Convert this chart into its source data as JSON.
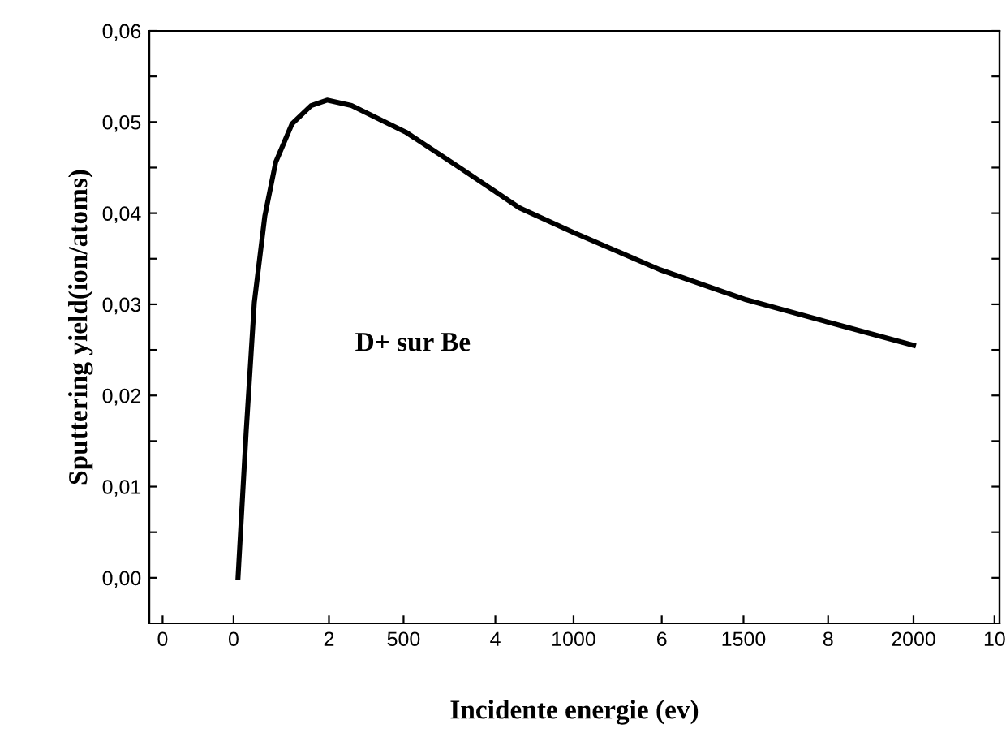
{
  "chart_data": {
    "type": "line",
    "xlabel": "Incidente energie (ev)",
    "ylabel": "Sputtering yield(ion/atoms)",
    "x": [
      13,
      37,
      61,
      92,
      124,
      172,
      228,
      275,
      347,
      506,
      665,
      745,
      840,
      999,
      1254,
      1508,
      1763,
      2000
    ],
    "series": [
      {
        "color": "#000000",
        "values": [
          0.0,
          0.016,
          0.0302,
          0.0397,
          0.0456,
          0.0498,
          0.0518,
          0.0524,
          0.0518,
          0.0489,
          0.045,
          0.043,
          0.0406,
          0.0379,
          0.0338,
          0.0305,
          0.0279,
          0.0255
        ]
      }
    ],
    "xlim": [
      -248,
      2253
    ],
    "xticks": [
      0,
      500,
      1000,
      1500,
      2000
    ],
    "x2lim": [
      -0.16,
      10.06
    ],
    "x2ticks": [
      0,
      2,
      4,
      6,
      8,
      10
    ],
    "ylim": [
      -0.005,
      0.06
    ],
    "yticks": [
      {
        "value": 0.0,
        "label": "0,00"
      },
      {
        "value": 0.005,
        "label": null
      },
      {
        "value": 0.01,
        "label": "0,01"
      },
      {
        "value": 0.015,
        "label": null
      },
      {
        "value": 0.02,
        "label": "0,02"
      },
      {
        "value": 0.025,
        "label": null
      },
      {
        "value": 0.03,
        "label": "0,03"
      },
      {
        "value": 0.035,
        "label": null
      },
      {
        "value": 0.04,
        "label": "0,04"
      },
      {
        "value": 0.045,
        "label": null
      },
      {
        "value": 0.05,
        "label": "0,05"
      },
      {
        "value": 0.055,
        "label": null
      },
      {
        "value": 0.06,
        "label": "0,06"
      }
    ],
    "annotations": [
      "D+ sur Be"
    ],
    "grid": false,
    "legend": false,
    "marker": "none",
    "line_style": "solid"
  }
}
